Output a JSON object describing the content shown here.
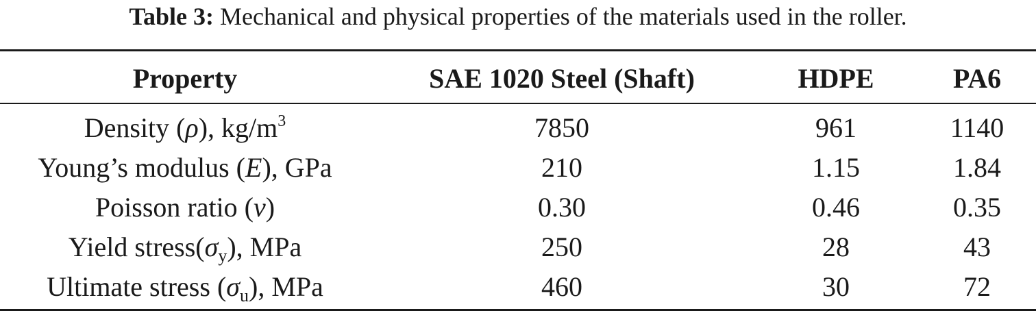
{
  "caption": {
    "label": "Table 3:",
    "text": "Mechanical and physical properties of the materials used in the roller."
  },
  "table": {
    "headers": [
      "Property",
      "SAE 1020 Steel (Shaft)",
      "HDPE",
      "PA6"
    ],
    "rows": [
      {
        "property": {
          "pre": "Density (",
          "sym": "ρ",
          "sub": "",
          "mid": "), kg/m",
          "sup": "3"
        },
        "values": [
          "7850",
          "961",
          "1140"
        ]
      },
      {
        "property": {
          "pre": "Young’s modulus (",
          "sym": "E",
          "sub": "",
          "mid": "), GPa",
          "sup": ""
        },
        "values": [
          "210",
          "1.15",
          "1.84"
        ]
      },
      {
        "property": {
          "pre": "Poisson ratio (",
          "sym": "ν",
          "sub": "",
          "mid": ")",
          "sup": ""
        },
        "values": [
          "0.30",
          "0.46",
          "0.35"
        ]
      },
      {
        "property": {
          "pre": "Yield stress(",
          "sym": "σ",
          "sub": "y",
          "mid": "), MPa",
          "sup": ""
        },
        "values": [
          "250",
          "28",
          "43"
        ]
      },
      {
        "property": {
          "pre": "Ultimate stress (",
          "sym": "σ",
          "sub": "u",
          "mid": "), MPa",
          "sup": ""
        },
        "values": [
          "460",
          "30",
          "72"
        ]
      }
    ]
  }
}
